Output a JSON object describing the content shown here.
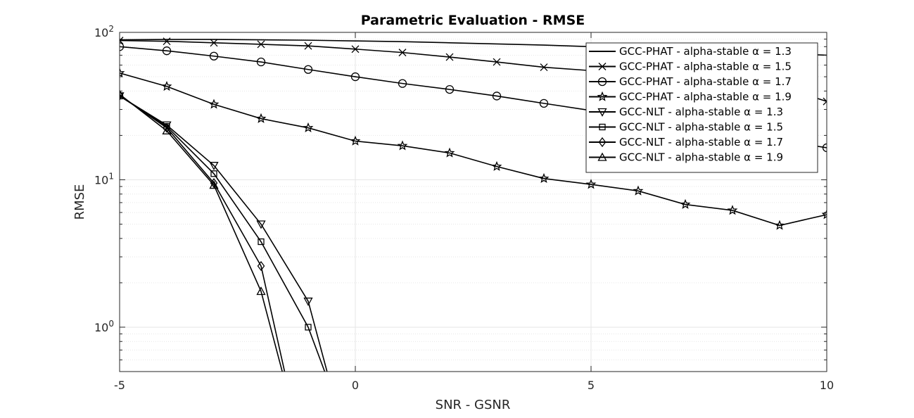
{
  "chart_data": {
    "type": "line",
    "title": "Parametric Evaluation - RMSE",
    "xlabel": "SNR - GSNR",
    "ylabel": "RMSE",
    "xlim": [
      -5,
      10
    ],
    "ylim": [
      0.5,
      100
    ],
    "yscale": "log",
    "grid": true,
    "legend_position": "top-right",
    "x_ticks": [
      "-5",
      "0",
      "5",
      "10"
    ],
    "y_ticks": [
      {
        "value": 1,
        "base": "10",
        "exp": "0"
      },
      {
        "value": 10,
        "base": "10",
        "exp": "1"
      },
      {
        "value": 100,
        "base": "10",
        "exp": "2"
      }
    ],
    "series": [
      {
        "name": "GCC-PHAT - alpha-stable α = 1.3",
        "marker": "none",
        "x": [
          -5,
          -4,
          -3,
          -2,
          -1,
          0,
          1,
          2,
          3,
          4,
          5,
          6,
          7,
          8,
          9,
          10
        ],
        "y": [
          89,
          89.5,
          89.5,
          89,
          88.5,
          87.5,
          86.5,
          85,
          83.5,
          82,
          80,
          78,
          76,
          74,
          72,
          70
        ]
      },
      {
        "name": "GCC-PHAT - alpha-stable α = 1.5",
        "marker": "x",
        "x": [
          -5,
          -4,
          -3,
          -2,
          -1,
          0,
          1,
          2,
          3,
          4,
          5,
          6,
          7,
          8,
          9,
          10
        ],
        "y": [
          88,
          87,
          85,
          83,
          81,
          77,
          73,
          68,
          63,
          58,
          55,
          52,
          49,
          46,
          43,
          34
        ]
      },
      {
        "name": "GCC-PHAT - alpha-stable α = 1.7",
        "marker": "circle",
        "x": [
          -5,
          -4,
          -3,
          -2,
          -1,
          0,
          1,
          2,
          3,
          4,
          5,
          6,
          7,
          8,
          9,
          10
        ],
        "y": [
          80,
          75,
          69,
          63,
          56,
          50,
          45,
          41,
          37,
          33,
          29.5,
          26,
          23,
          20.5,
          18.5,
          16.5
        ]
      },
      {
        "name": "GCC-PHAT - alpha-stable α = 1.9",
        "marker": "star",
        "x": [
          -5,
          -4,
          -3,
          -2,
          -1,
          0,
          1,
          2,
          3,
          4,
          5,
          6,
          7,
          8,
          9,
          10
        ],
        "y": [
          53,
          43,
          32.5,
          26,
          22.5,
          18.3,
          17,
          15.2,
          12.3,
          10.2,
          9.3,
          8.4,
          6.8,
          6.2,
          4.9,
          5.8
        ]
      },
      {
        "name": "GCC-NLT - alpha-stable α = 1.3",
        "marker": "triangle-down",
        "x": [
          -5,
          -4,
          -3,
          -2,
          -1,
          -0.6
        ],
        "y": [
          37,
          23.5,
          12.5,
          5,
          1.5,
          0.5
        ]
      },
      {
        "name": "GCC-NLT - alpha-stable α = 1.5",
        "marker": "square",
        "x": [
          -5,
          -4,
          -3,
          -2,
          -1,
          -0.65
        ],
        "y": [
          37,
          23,
          11,
          3.8,
          1,
          0.5
        ]
      },
      {
        "name": "GCC-NLT - alpha-stable α = 1.7",
        "marker": "diamond",
        "x": [
          -5,
          -4,
          -3,
          -2,
          -1.5
        ],
        "y": [
          37.5,
          22.5,
          9.5,
          2.6,
          0.5
        ]
      },
      {
        "name": "GCC-NLT - alpha-stable α = 1.9",
        "marker": "triangle-up",
        "x": [
          -5,
          -4,
          -3,
          -2,
          -1.55
        ],
        "y": [
          38,
          21.5,
          9.2,
          1.75,
          0.5
        ]
      }
    ]
  }
}
